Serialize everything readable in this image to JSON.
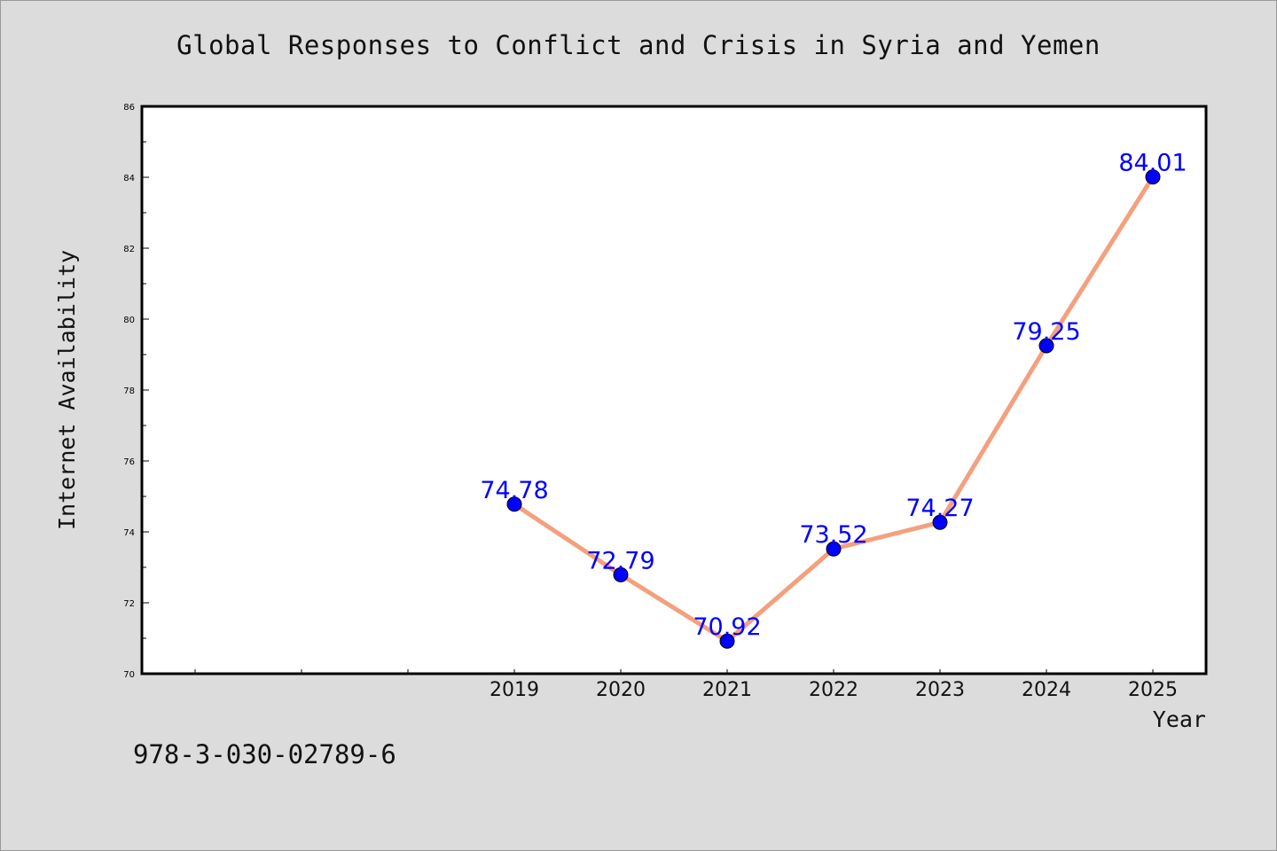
{
  "chart_data": {
    "type": "line",
    "title": "Global Responses to Conflict and Crisis in Syria and Yemen",
    "xlabel": "Year",
    "ylabel": "Internet Availability",
    "ylim": [
      70,
      86
    ],
    "yticks": [
      70,
      72,
      74,
      76,
      78,
      80,
      82,
      84,
      86
    ],
    "x": [
      "2019",
      "2020",
      "2021",
      "2022",
      "2023",
      "2024",
      "2025"
    ],
    "values": [
      74.78,
      72.79,
      70.92,
      73.52,
      74.27,
      79.25,
      84.01
    ],
    "data_labels": [
      "74.78",
      "72.79",
      "70.92",
      "73.52",
      "74.27",
      "79.25",
      "84.01"
    ],
    "grid": false,
    "colors": {
      "line": "#f4a07e",
      "marker": "#0000ff",
      "label": "#0000ff",
      "plot_background": "#ffffff",
      "figure_background": "#dcdcdc"
    }
  },
  "footer": {
    "isbn": "978-3-030-02789-6"
  }
}
